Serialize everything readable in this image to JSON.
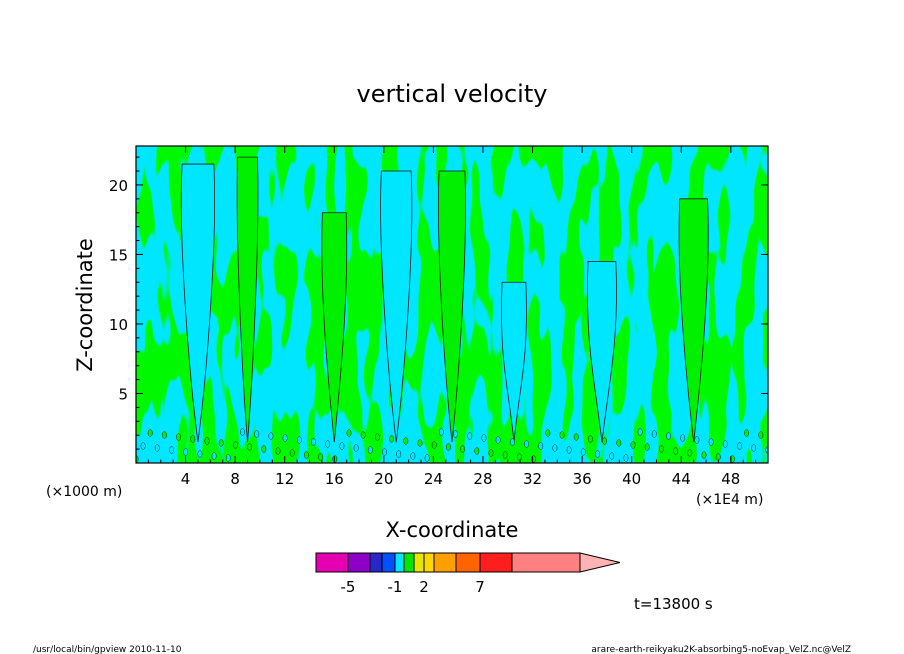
{
  "chart_data": {
    "type": "heatmap",
    "title": "vertical velocity",
    "xlabel": "X-coordinate",
    "ylabel": "Z-coordinate",
    "x_unit_left": "(×1000 m)",
    "x_unit_right": "(×1E4 m)",
    "xlim": [
      0,
      51
    ],
    "ylim": [
      0,
      22.8
    ],
    "x_ticks": [
      "4",
      "8",
      "12",
      "16",
      "20",
      "24",
      "28",
      "32",
      "36",
      "40",
      "44",
      "48"
    ],
    "x_tick_values": [
      4,
      8,
      12,
      16,
      20,
      24,
      28,
      32,
      36,
      40,
      44,
      48
    ],
    "y_ticks": [
      "5",
      "10",
      "15",
      "20"
    ],
    "y_tick_values": [
      5,
      10,
      15,
      20
    ],
    "grid": false,
    "colorbar": {
      "labels": [
        "-5",
        "-1",
        "2",
        "7"
      ],
      "label_values": [
        -5,
        -1,
        2,
        7
      ],
      "colors": [
        "#e600b4",
        "#8c00c8",
        "#2828c8",
        "#0050ff",
        "#00e6ff",
        "#00e600",
        "#e6e600",
        "#ffd700",
        "#ffa000",
        "#ff6400",
        "#ff1e1e",
        "#ff8080",
        "#ffb4b4"
      ],
      "level_values": [
        -7,
        -5,
        -3,
        -2,
        -1,
        0,
        1,
        2,
        3,
        5,
        7,
        11
      ]
    },
    "dominant_colors": {
      "positive": "#00f000",
      "negative": "#00e6ff",
      "contour": "#222222"
    },
    "time_label": "t=13800 s"
  },
  "footer": {
    "left": "/usr/local/bin/gpview 2010-11-10",
    "right": "arare-earth-reikyaku2K-absorbing5-noEvap_VelZ.nc@VelZ"
  }
}
